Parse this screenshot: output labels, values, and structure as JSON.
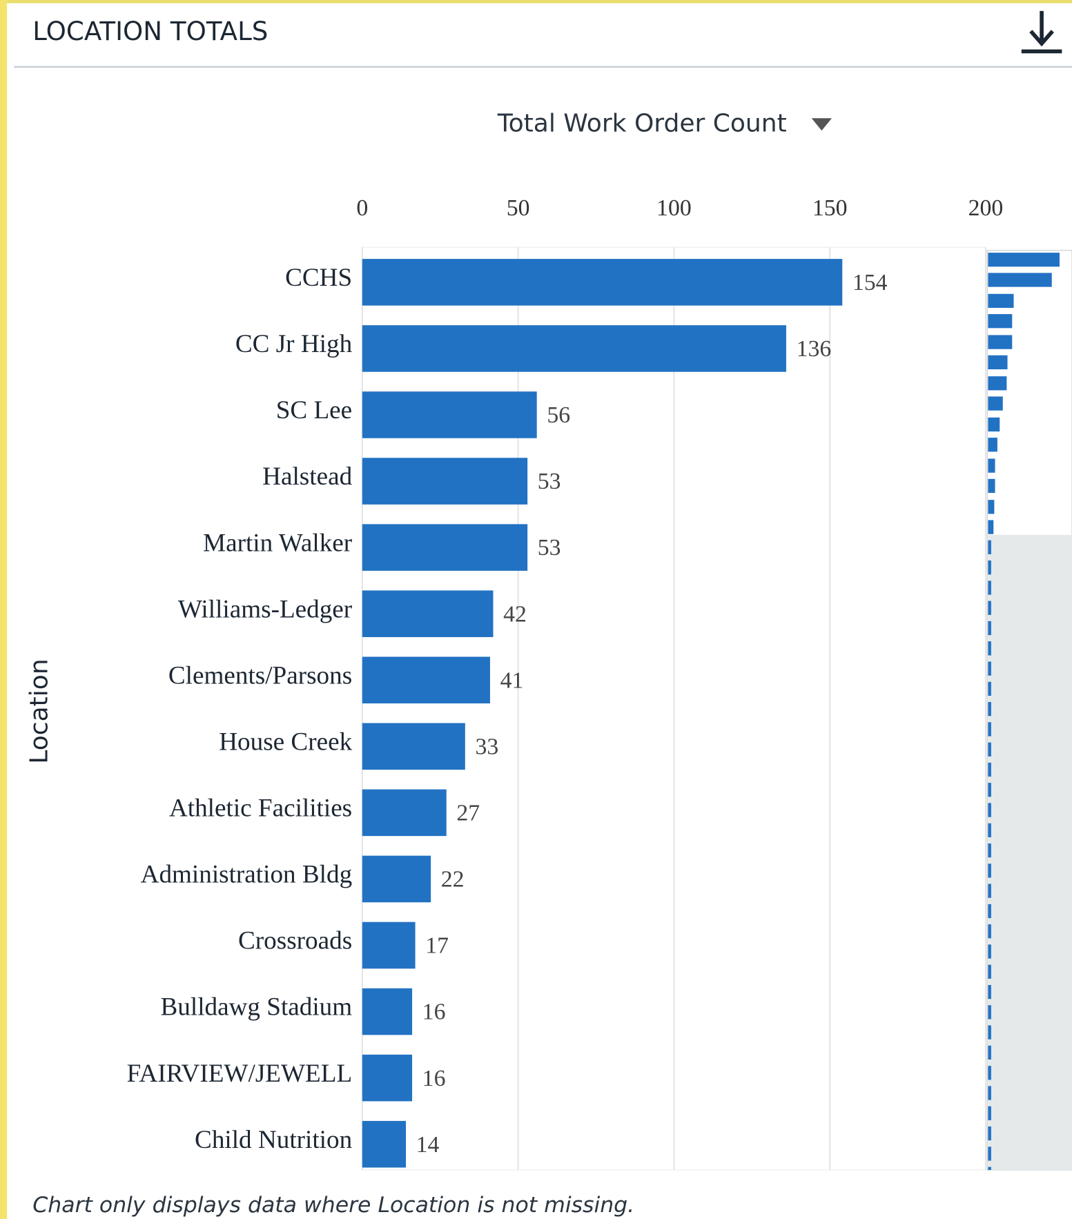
{
  "chart_data": {
    "type": "bar",
    "orientation": "horizontal",
    "title": "LOCATION TOTALS",
    "measure": "Total Work Order Count",
    "y_label": "Location",
    "footnote": "Chart only displays data where Location is not missing.",
    "categories": [
      "CCHS",
      "CC Jr High",
      "SC Lee",
      "Halstead",
      "Martin Walker",
      "Williams-Ledger",
      "Clements/Parsons",
      "House Creek",
      "Athletic Facilities",
      "Administration Bldg",
      "Crossroads",
      "Bulldawg Stadium",
      "FAIRVIEW/JEWELL",
      "Child Nutrition"
    ],
    "values": [
      154,
      136,
      56,
      53,
      53,
      42,
      41,
      33,
      27,
      22,
      17,
      16,
      16,
      14
    ],
    "color": "#2272c3",
    "xlim": [
      0,
      200
    ],
    "xticks": [
      0,
      50,
      100,
      150,
      200
    ],
    "grid": true
  }
}
